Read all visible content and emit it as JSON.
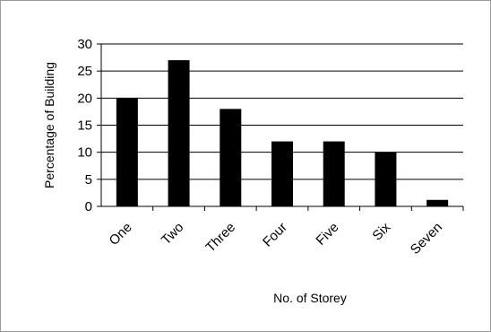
{
  "chart_data": {
    "type": "bar",
    "title": "",
    "xlabel": "No. of Storey",
    "ylabel": "Percentage of Building",
    "categories": [
      "One",
      "Two",
      "Three",
      "Four",
      "Five",
      "Six",
      "Seven"
    ],
    "values": [
      20,
      27,
      18,
      12,
      12,
      10,
      1.2
    ],
    "ylim": [
      0,
      30
    ],
    "yticks": [
      "0",
      "5",
      "10",
      "15",
      "20",
      "25",
      "30"
    ],
    "grid": true,
    "legend": "none",
    "bar_color": "#000000",
    "grid_color": "#000000"
  }
}
